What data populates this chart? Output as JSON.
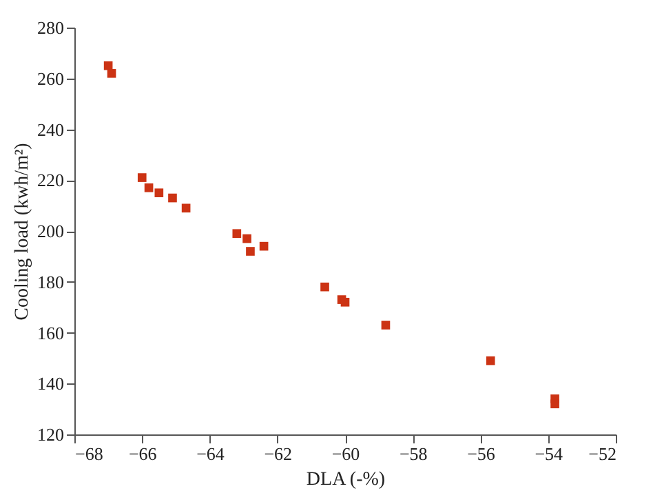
{
  "chart_data": {
    "type": "scatter",
    "xlabel": "DLA (-%)",
    "ylabel": "Cooling load (kwh/m²)",
    "x": [
      -67.0,
      -66.9,
      -66.0,
      -65.8,
      -65.5,
      -65.1,
      -64.7,
      -63.2,
      -62.9,
      -62.8,
      -62.4,
      -60.6,
      -60.1,
      -60.0,
      -58.8,
      -55.7,
      -53.8,
      -53.8
    ],
    "series": [
      {
        "color": "#cc3314",
        "values": [
          265,
          262,
          221,
          217,
          215,
          213,
          209,
          199,
          197,
          192,
          194,
          178,
          173,
          172,
          163,
          149,
          134,
          132
        ]
      }
    ],
    "xlim": [
      -68,
      -52
    ],
    "xticks": [
      -68,
      -66,
      -64,
      -62,
      -60,
      -58,
      -56,
      -54,
      -52
    ],
    "ylim": [
      120,
      280
    ],
    "yticks": [
      120,
      140,
      160,
      180,
      200,
      220,
      240,
      260,
      280
    ],
    "grid": false,
    "marker": "square"
  }
}
